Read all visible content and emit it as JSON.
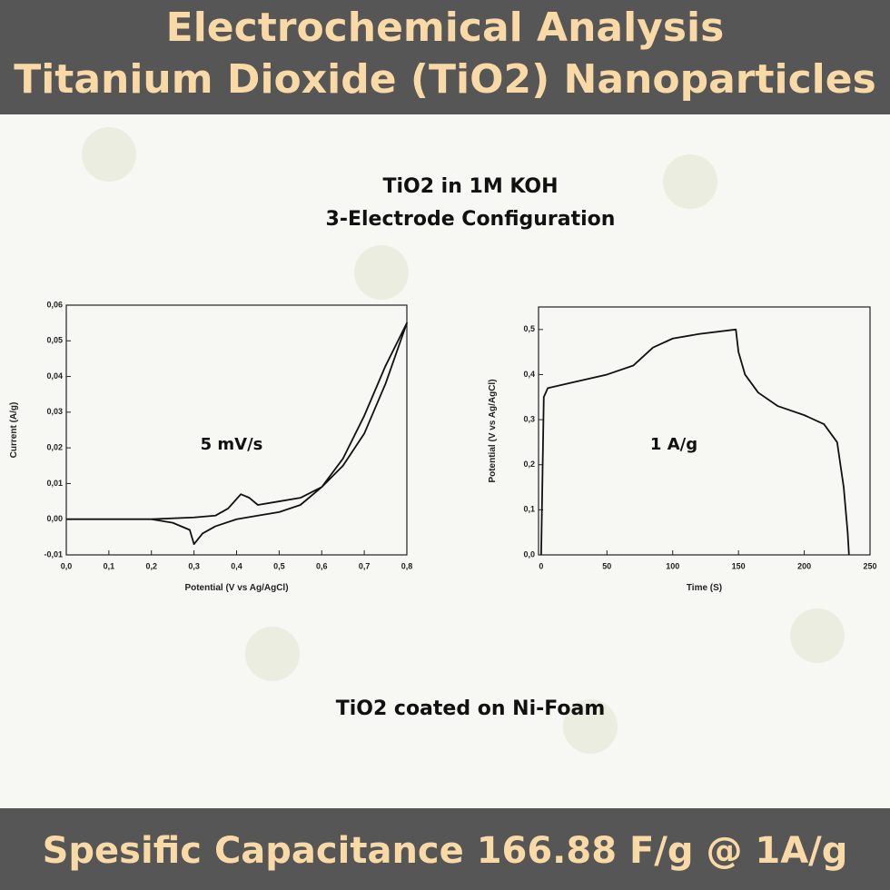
{
  "header": {
    "line1": "Electrochemical Analysis",
    "line2": "Titanium Dioxide (TiO2) Nanoparticles"
  },
  "subtitle": {
    "line1": "TiO2 in 1M KOH",
    "line2": "3-Electrode Configuration"
  },
  "caption": "TiO2 coated on Ni-Foam",
  "footer": "Spesific Capacitance 166.88 F/g @ 1A/g",
  "chart_data": [
    {
      "type": "line",
      "x_label": "Potential (V vs Ag/AgCl)",
      "y_label": "Current (A/g)",
      "annotation": "5 mV/s",
      "x": [
        0,
        0.1,
        0.2,
        0.3,
        0.35,
        0.38,
        0.41,
        0.43,
        0.45,
        0.5,
        0.55,
        0.6,
        0.65,
        0.7,
        0.75,
        0.8,
        0.75,
        0.7,
        0.65,
        0.6,
        0.55,
        0.5,
        0.45,
        0.4,
        0.35,
        0.32,
        0.3,
        0.29,
        0.25,
        0.2,
        0.1,
        0
      ],
      "series": [
        {
          "color": "#111111",
          "values": [
            0,
            0,
            0,
            0.0005,
            0.001,
            0.003,
            0.007,
            0.006,
            0.004,
            0.005,
            0.006,
            0.009,
            0.015,
            0.024,
            0.038,
            0.055,
            0.043,
            0.029,
            0.017,
            0.009,
            0.004,
            0.002,
            0.001,
            0,
            -0.002,
            -0.004,
            -0.007,
            -0.003,
            -0.001,
            0,
            0,
            0
          ]
        }
      ],
      "xlim": [
        0,
        0.8
      ],
      "ylim": [
        -0.01,
        0.06
      ],
      "xticks": [
        {
          "value": 0,
          "label": "0,0"
        },
        {
          "value": 0.1,
          "label": "0,1"
        },
        {
          "value": 0.2,
          "label": "0,2"
        },
        {
          "value": 0.3,
          "label": "0,3"
        },
        {
          "value": 0.4,
          "label": "0,4"
        },
        {
          "value": 0.5,
          "label": "0,5"
        },
        {
          "value": 0.6,
          "label": "0,6"
        },
        {
          "value": 0.7,
          "label": "0,7"
        },
        {
          "value": 0.8,
          "label": "0,8"
        }
      ],
      "yticks": [
        {
          "value": -0.01,
          "label": "-0,01"
        },
        {
          "value": 0,
          "label": "0,00"
        },
        {
          "value": 0.01,
          "label": "0,01"
        },
        {
          "value": 0.02,
          "label": "0,02"
        },
        {
          "value": 0.03,
          "label": "0,03"
        },
        {
          "value": 0.04,
          "label": "0,04"
        },
        {
          "value": 0.05,
          "label": "0,05"
        },
        {
          "value": 0.06,
          "label": "0,06"
        }
      ]
    },
    {
      "type": "line",
      "x_label": "Time (S)",
      "y_label": "Potential (V vs Ag/AgCl)",
      "annotation": "1 A/g",
      "x": [
        0,
        2,
        5,
        20,
        50,
        70,
        85,
        100,
        120,
        148,
        150,
        155,
        165,
        180,
        200,
        215,
        225,
        230,
        233,
        234
      ],
      "series": [
        {
          "color": "#111111",
          "values": [
            0,
            0.35,
            0.37,
            0.38,
            0.4,
            0.42,
            0.46,
            0.48,
            0.49,
            0.5,
            0.45,
            0.4,
            0.36,
            0.33,
            0.31,
            0.29,
            0.25,
            0.15,
            0.05,
            0
          ]
        }
      ],
      "xlim": [
        -2,
        250
      ],
      "ylim": [
        0,
        0.55
      ],
      "xticks": [
        0,
        50,
        100,
        150,
        200,
        250
      ],
      "yticks": [
        {
          "value": 0,
          "label": "0,0"
        },
        {
          "value": 0.1,
          "label": "0,1"
        },
        {
          "value": 0.2,
          "label": "0,2"
        },
        {
          "value": 0.3,
          "label": "0,3"
        },
        {
          "value": 0.4,
          "label": "0,4"
        },
        {
          "value": 0.5,
          "label": "0,5"
        }
      ]
    }
  ]
}
